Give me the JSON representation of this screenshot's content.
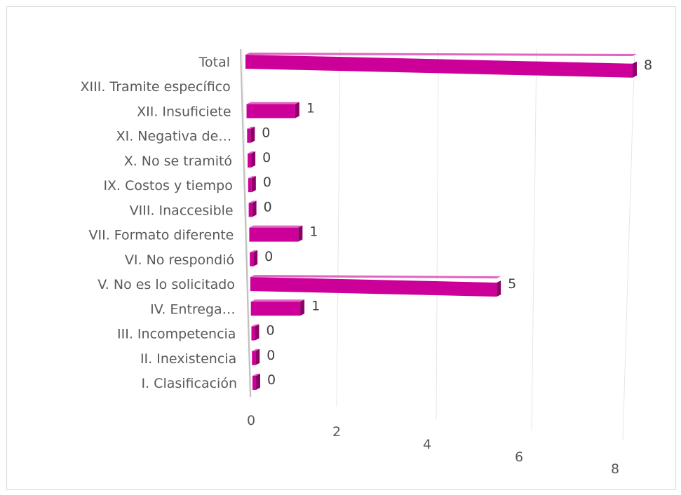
{
  "chart_data": {
    "type": "bar",
    "orientation": "horizontal",
    "style": "3d-perspective",
    "title": "",
    "xlabel": "",
    "ylabel": "",
    "categories": [
      "Total",
      "XIII. Tramite específico",
      "XII. Insuficiete",
      "XI. Negativa de…",
      "X. No se tramitó",
      "IX. Costos y tiempo",
      "VIII. Inaccesible",
      "VII. Formato diferente",
      "VI. No respondió",
      "V. No es lo solicitado",
      "IV. Entrega…",
      "III. Incompetencia",
      "II. Inexistencia",
      "I. Clasificación"
    ],
    "values": [
      8,
      null,
      1,
      0,
      0,
      0,
      0,
      1,
      0,
      5,
      1,
      0,
      0,
      0
    ],
    "value_labels": [
      "8",
      "",
      "1",
      "0",
      "0",
      "0",
      "0",
      "1",
      "0",
      "5",
      "1",
      "0",
      "0",
      "0"
    ],
    "xticks": [
      "0",
      "2",
      "4",
      "6",
      "8"
    ],
    "xlim": [
      0,
      8
    ],
    "grid": true,
    "legend": "none",
    "bar_color": "#cc0099",
    "bar_side_color": "#8e0068",
    "bar_top_color": "#e066bf"
  }
}
